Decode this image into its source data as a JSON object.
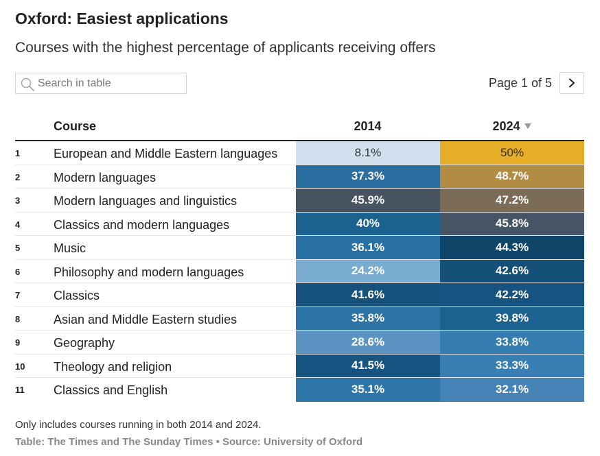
{
  "title": "Oxford: Easiest applications",
  "subtitle": "Courses with the highest percentage of applicants receiving offers",
  "search": {
    "placeholder": "Search in table"
  },
  "pager": {
    "text": "Page 1 of 5"
  },
  "headers": {
    "course": "Course",
    "y2014": "2014",
    "y2024": "2024"
  },
  "rows": [
    {
      "rank": "1",
      "course": "European and Middle Eastern languages",
      "v2014": "8.1%",
      "v2024": "50%",
      "bg2014": "#d0dfed",
      "bg2024": "#e6ae27"
    },
    {
      "rank": "2",
      "course": "Modern languages",
      "v2014": "37.3%",
      "v2024": "48.7%",
      "bg2014": "#2a6d9e",
      "bg2024": "#b38c44"
    },
    {
      "rank": "3",
      "course": "Modern languages and linguistics",
      "v2014": "45.9%",
      "v2024": "47.2%",
      "bg2014": "#475361",
      "bg2024": "#7b6b57"
    },
    {
      "rank": "4",
      "course": "Classics and modern languages",
      "v2014": "40%",
      "v2024": "45.8%",
      "bg2014": "#1c6290",
      "bg2024": "#465565"
    },
    {
      "rank": "5",
      "course": "Music",
      "v2014": "36.1%",
      "v2024": "44.3%",
      "bg2014": "#2a71a3",
      "bg2024": "#0e4569"
    },
    {
      "rank": "6",
      "course": "Philosophy and modern languages",
      "v2014": "24.2%",
      "v2024": "42.6%",
      "bg2014": "#7aacd2",
      "bg2024": "#155078"
    },
    {
      "rank": "7",
      "course": "Classics",
      "v2014": "41.6%",
      "v2024": "42.2%",
      "bg2014": "#15517b",
      "bg2024": "#165380"
    },
    {
      "rank": "8",
      "course": "Asian and Middle Eastern studies",
      "v2014": "35.8%",
      "v2024": "39.8%",
      "bg2014": "#2b72a5",
      "bg2024": "#1c6290"
    },
    {
      "rank": "9",
      "course": "Geography",
      "v2014": "28.6%",
      "v2024": "33.8%",
      "bg2014": "#5b94c2",
      "bg2024": "#357cb0"
    },
    {
      "rank": "10",
      "course": "Theology and religion",
      "v2014": "41.5%",
      "v2024": "33.3%",
      "bg2014": "#175481",
      "bg2024": "#387eb2"
    },
    {
      "rank": "11",
      "course": "Classics and English",
      "v2014": "35.1%",
      "v2024": "32.1%",
      "bg2014": "#2e75a8",
      "bg2024": "#4583b6"
    }
  ],
  "note": "Only includes courses running in both 2014 and 2024.",
  "source": "Table: The Times and The Sunday Times • Source: University of Oxford"
}
